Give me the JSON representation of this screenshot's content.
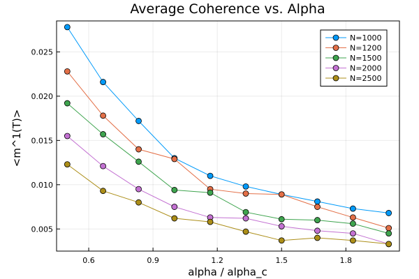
{
  "chart_data": {
    "type": "line",
    "title": "Average Coherence vs. Alpha",
    "xlabel": "alpha / alpha_c",
    "ylabel": "<m^1(T)>",
    "xlim": [
      0.45,
      2.05
    ],
    "ylim": [
      0.0025,
      0.0285
    ],
    "xticks": [
      0.6,
      0.9,
      1.2,
      1.5,
      1.8
    ],
    "xtick_labels": [
      "0.6",
      "0.9",
      "1.2",
      "1.5",
      "1.8"
    ],
    "yticks": [
      0.005,
      0.01,
      0.015,
      0.02,
      0.025
    ],
    "ytick_labels": [
      "0.005",
      "0.010",
      "0.015",
      "0.020",
      "0.025"
    ],
    "grid": true,
    "legend": "top-right",
    "x": [
      0.5,
      0.667,
      0.833,
      1.0,
      1.167,
      1.333,
      1.5,
      1.667,
      1.833,
      2.0
    ],
    "series": [
      {
        "name": "N=1000",
        "color": "#009AFA",
        "values": [
          0.0278,
          0.0216,
          0.0172,
          0.013,
          0.011,
          0.0098,
          0.0089,
          0.0081,
          0.0073,
          0.0068
        ]
      },
      {
        "name": "N=1200",
        "color": "#E36F47",
        "values": [
          0.0228,
          0.0178,
          0.014,
          0.0129,
          0.0095,
          0.009,
          0.0089,
          0.0075,
          0.0063,
          0.0051
        ]
      },
      {
        "name": "N=1500",
        "color": "#3EA44E",
        "values": [
          0.0192,
          0.0157,
          0.0126,
          0.0094,
          0.0091,
          0.0069,
          0.0061,
          0.006,
          0.0056,
          0.0045
        ]
      },
      {
        "name": "N=2000",
        "color": "#C371D2",
        "values": [
          0.0155,
          0.0121,
          0.0095,
          0.0075,
          0.0063,
          0.0062,
          0.0053,
          0.0048,
          0.0045,
          0.0033
        ]
      },
      {
        "name": "N=2500",
        "color": "#AC8E18",
        "values": [
          0.0123,
          0.0093,
          0.008,
          0.0062,
          0.0058,
          0.0047,
          0.0037,
          0.004,
          0.0037,
          0.0033
        ]
      }
    ]
  }
}
